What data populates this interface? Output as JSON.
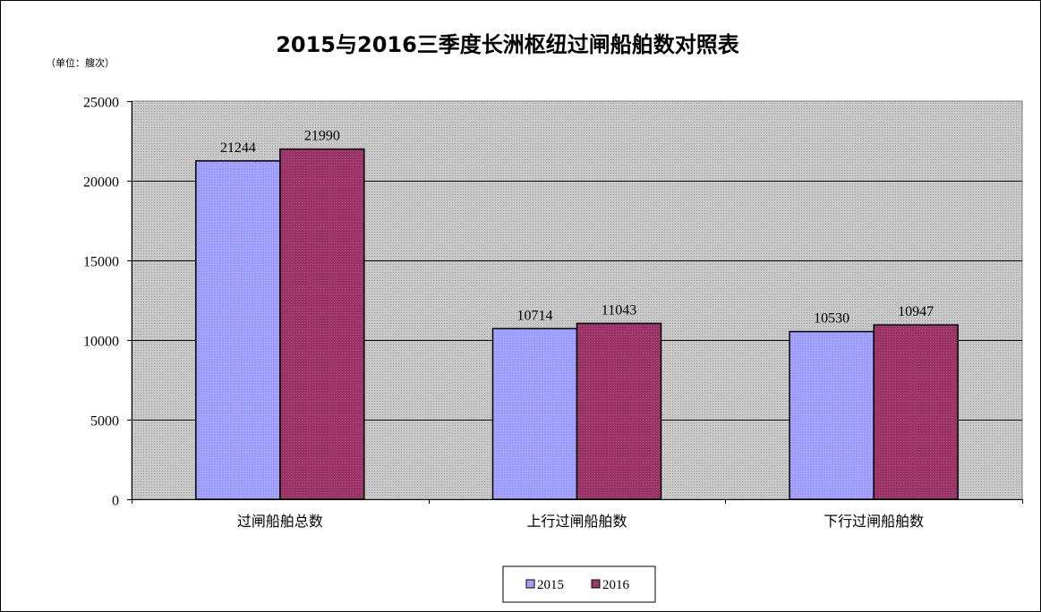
{
  "chart_data": {
    "type": "bar",
    "title": "2015与2016三季度长洲枢纽过闸船舶数对照表",
    "unit_note": "（单位：艘次）",
    "categories": [
      "过闸船舶总数",
      "上行过闸船舶数",
      "下行过闸船舶数"
    ],
    "series": [
      {
        "name": "2015",
        "values": [
          21244,
          10714,
          10530
        ],
        "color": "#9999FF"
      },
      {
        "name": "2016",
        "values": [
          21990,
          11043,
          10947
        ],
        "color": "#993366"
      }
    ],
    "ylim": [
      0,
      25000
    ],
    "yticks": [
      0,
      5000,
      10000,
      15000,
      20000,
      25000
    ],
    "grid": true,
    "plot_background": "#C0C0C0",
    "legend_position": "bottom"
  }
}
